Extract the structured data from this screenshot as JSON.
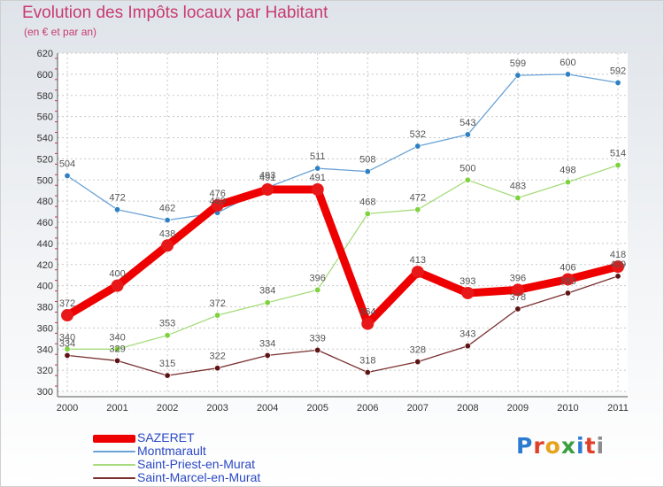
{
  "title": "Evolution des Impôts locaux par Habitant",
  "subtitle": "(en € et par an)",
  "logo": {
    "letters": [
      "P",
      "r",
      "o",
      "x",
      "i",
      "t",
      "i"
    ],
    "colors": [
      "#2c7bd1",
      "#e0402a",
      "#e6a21a",
      "#3aa040",
      "#2c7bd1",
      "#e0402a",
      "#8c8c8c"
    ]
  },
  "chart_data": {
    "type": "line",
    "x": [
      "2000",
      "2001",
      "2002",
      "2003",
      "2004",
      "2005",
      "2006",
      "2007",
      "2008",
      "2009",
      "2010",
      "2011"
    ],
    "ylim": [
      300,
      620
    ],
    "yticks": [
      "300",
      "320",
      "340",
      "360",
      "380",
      "400",
      "420",
      "440",
      "460",
      "480",
      "500",
      "520",
      "540",
      "560",
      "580",
      "600",
      "620"
    ],
    "grid": true,
    "legend_position": "bottom-left",
    "series": [
      {
        "name": "SAZERET",
        "values": [
          372,
          400,
          438,
          476,
          491,
          491,
          364,
          413,
          393,
          396,
          406,
          418
        ],
        "color": "#ee0000",
        "marker": "#e81818",
        "emphasis": true
      },
      {
        "name": "Montmarault",
        "values": [
          504,
          472,
          462,
          469,
          493,
          511,
          508,
          532,
          543,
          599,
          600,
          592
        ],
        "color": "#6aa3d6",
        "marker": "#2f80c2",
        "emphasis": false
      },
      {
        "name": "Saint-Priest-en-Murat",
        "values": [
          340,
          340,
          353,
          372,
          384,
          396,
          468,
          472,
          500,
          483,
          498,
          514
        ],
        "color": "#a6dc7c",
        "marker": "#7ed23e",
        "emphasis": false
      },
      {
        "name": "Saint-Marcel-en-Murat",
        "values": [
          334,
          329,
          315,
          322,
          334,
          339,
          318,
          328,
          343,
          378,
          393,
          409
        ],
        "color": "#7a3030",
        "marker": "#5e1414",
        "emphasis": false
      }
    ],
    "data_labels": [
      {
        "series": 0,
        "index": 0,
        "text": "372"
      },
      {
        "series": 0,
        "index": 1,
        "text": "400"
      },
      {
        "series": 0,
        "index": 2,
        "text": "438"
      },
      {
        "series": 0,
        "index": 3,
        "text": "476"
      },
      {
        "series": 0,
        "index": 4,
        "text": "491"
      },
      {
        "series": 0,
        "index": 5,
        "text": "491"
      },
      {
        "series": 0,
        "index": 6,
        "text": "364"
      },
      {
        "series": 0,
        "index": 7,
        "text": "413"
      },
      {
        "series": 0,
        "index": 8,
        "text": "393"
      },
      {
        "series": 0,
        "index": 9,
        "text": "396"
      },
      {
        "series": 0,
        "index": 10,
        "text": "406"
      },
      {
        "series": 0,
        "index": 11,
        "text": "418"
      },
      {
        "series": 1,
        "index": 0,
        "text": "504"
      },
      {
        "series": 1,
        "index": 1,
        "text": "472"
      },
      {
        "series": 1,
        "index": 2,
        "text": "462"
      },
      {
        "series": 1,
        "index": 3,
        "text": "469"
      },
      {
        "series": 1,
        "index": 4,
        "text": "493"
      },
      {
        "series": 1,
        "index": 5,
        "text": "511"
      },
      {
        "series": 1,
        "index": 6,
        "text": "508"
      },
      {
        "series": 1,
        "index": 7,
        "text": "532"
      },
      {
        "series": 1,
        "index": 8,
        "text": "543"
      },
      {
        "series": 1,
        "index": 9,
        "text": "599"
      },
      {
        "series": 1,
        "index": 10,
        "text": "600"
      },
      {
        "series": 1,
        "index": 11,
        "text": "592"
      },
      {
        "series": 2,
        "index": 0,
        "text": "340"
      },
      {
        "series": 2,
        "index": 1,
        "text": "340"
      },
      {
        "series": 2,
        "index": 2,
        "text": "353"
      },
      {
        "series": 2,
        "index": 3,
        "text": "372"
      },
      {
        "series": 2,
        "index": 4,
        "text": "384"
      },
      {
        "series": 2,
        "index": 5,
        "text": "396"
      },
      {
        "series": 2,
        "index": 6,
        "text": "468"
      },
      {
        "series": 2,
        "index": 7,
        "text": "472"
      },
      {
        "series": 2,
        "index": 8,
        "text": "500"
      },
      {
        "series": 2,
        "index": 9,
        "text": "483"
      },
      {
        "series": 2,
        "index": 10,
        "text": "498"
      },
      {
        "series": 2,
        "index": 11,
        "text": "514"
      },
      {
        "series": 3,
        "index": 0,
        "text": "334"
      },
      {
        "series": 3,
        "index": 1,
        "text": "329"
      },
      {
        "series": 3,
        "index": 2,
        "text": "315"
      },
      {
        "series": 3,
        "index": 3,
        "text": "322"
      },
      {
        "series": 3,
        "index": 4,
        "text": "334"
      },
      {
        "series": 3,
        "index": 5,
        "text": "339"
      },
      {
        "series": 3,
        "index": 6,
        "text": "318"
      },
      {
        "series": 3,
        "index": 7,
        "text": "328"
      },
      {
        "series": 3,
        "index": 8,
        "text": "343"
      },
      {
        "series": 3,
        "index": 9,
        "text": "378"
      },
      {
        "series": 3,
        "index": 10,
        "text": "393"
      },
      {
        "series": 3,
        "index": 11,
        "text": "409"
      }
    ]
  }
}
